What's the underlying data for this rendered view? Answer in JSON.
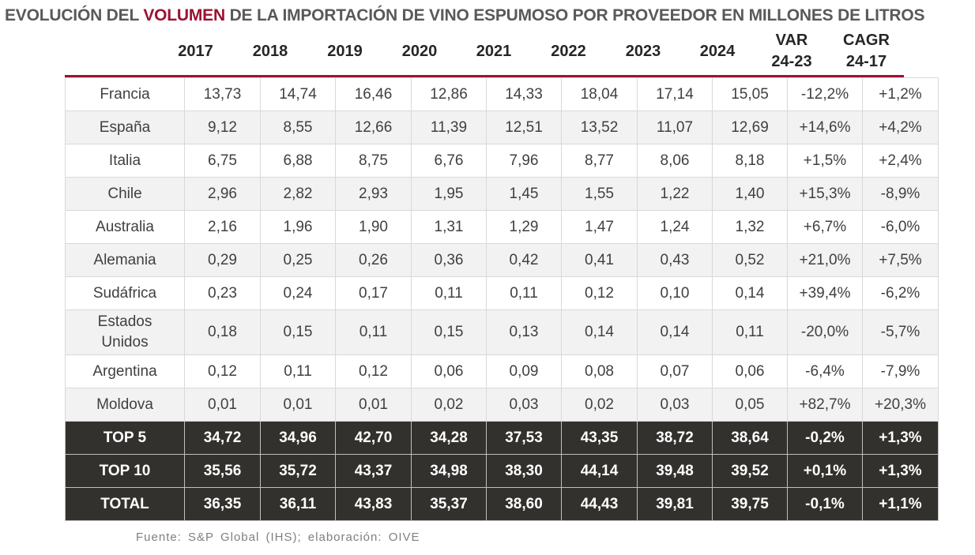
{
  "title": {
    "prefix": "EVOLUCIÓN DEL ",
    "highlight": "VOLUMEN",
    "suffix": " DE LA IMPORTACIÓN DE VINO ESPUMOSO POR PROVEEDOR EN MILLONES DE LITROS"
  },
  "colors": {
    "highlight": "#9b1230",
    "dark_row": "#32312d",
    "alt_row": "#f2f2f2",
    "title": "#595959"
  },
  "source": "Fuente: S&P Global (IHS); elaboración: OIVE",
  "chart_data": {
    "type": "table",
    "columns": [
      "2017",
      "2018",
      "2019",
      "2020",
      "2021",
      "2022",
      "2023",
      "2024",
      "VAR 24-23",
      "CAGR 24-17"
    ],
    "rows": [
      {
        "label": "Francia",
        "values": [
          "13,73",
          "14,74",
          "16,46",
          "12,86",
          "14,33",
          "18,04",
          "17,14",
          "15,05",
          "-12,2%",
          "+1,2%"
        ]
      },
      {
        "label": "España",
        "values": [
          "9,12",
          "8,55",
          "12,66",
          "11,39",
          "12,51",
          "13,52",
          "11,07",
          "12,69",
          "+14,6%",
          "+4,2%"
        ]
      },
      {
        "label": "Italia",
        "values": [
          "6,75",
          "6,88",
          "8,75",
          "6,76",
          "7,96",
          "8,77",
          "8,06",
          "8,18",
          "+1,5%",
          "+2,4%"
        ]
      },
      {
        "label": "Chile",
        "values": [
          "2,96",
          "2,82",
          "2,93",
          "1,95",
          "1,45",
          "1,55",
          "1,22",
          "1,40",
          "+15,3%",
          "-8,9%"
        ]
      },
      {
        "label": "Australia",
        "values": [
          "2,16",
          "1,96",
          "1,90",
          "1,31",
          "1,29",
          "1,47",
          "1,24",
          "1,32",
          "+6,7%",
          "-6,0%"
        ]
      },
      {
        "label": "Alemania",
        "values": [
          "0,29",
          "0,25",
          "0,26",
          "0,36",
          "0,42",
          "0,41",
          "0,43",
          "0,52",
          "+21,0%",
          "+7,5%"
        ]
      },
      {
        "label": "Sudáfrica",
        "values": [
          "0,23",
          "0,24",
          "0,17",
          "0,11",
          "0,11",
          "0,12",
          "0,10",
          "0,14",
          "+39,4%",
          "-6,2%"
        ]
      },
      {
        "label": "Estados Unidos",
        "values": [
          "0,18",
          "0,15",
          "0,11",
          "0,15",
          "0,13",
          "0,14",
          "0,14",
          "0,11",
          "-20,0%",
          "-5,7%"
        ]
      },
      {
        "label": "Argentina",
        "values": [
          "0,12",
          "0,11",
          "0,12",
          "0,06",
          "0,09",
          "0,08",
          "0,07",
          "0,06",
          "-6,4%",
          "-7,9%"
        ]
      },
      {
        "label": "Moldova",
        "values": [
          "0,01",
          "0,01",
          "0,01",
          "0,02",
          "0,03",
          "0,02",
          "0,03",
          "0,05",
          "+82,7%",
          "+20,3%"
        ]
      }
    ],
    "totals": [
      {
        "label": "TOP 5",
        "values": [
          "34,72",
          "34,96",
          "42,70",
          "34,28",
          "37,53",
          "43,35",
          "38,72",
          "38,64",
          "-0,2%",
          "+1,3%"
        ]
      },
      {
        "label": "TOP 10",
        "values": [
          "35,56",
          "35,72",
          "43,37",
          "34,98",
          "38,30",
          "44,14",
          "39,48",
          "39,52",
          "+0,1%",
          "+1,3%"
        ]
      },
      {
        "label": "TOTAL",
        "values": [
          "36,35",
          "36,11",
          "43,83",
          "35,37",
          "38,60",
          "44,43",
          "39,81",
          "39,75",
          "-0,1%",
          "+1,1%"
        ]
      }
    ]
  }
}
